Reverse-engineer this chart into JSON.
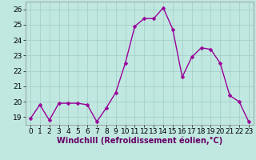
{
  "x": [
    0,
    1,
    2,
    3,
    4,
    5,
    6,
    7,
    8,
    9,
    10,
    11,
    12,
    13,
    14,
    15,
    16,
    17,
    18,
    19,
    20,
    21,
    22,
    23
  ],
  "y": [
    18.9,
    19.8,
    18.8,
    19.9,
    19.9,
    19.9,
    19.8,
    18.7,
    19.6,
    20.6,
    22.5,
    24.9,
    25.4,
    25.4,
    26.1,
    24.7,
    21.6,
    22.9,
    23.5,
    23.4,
    22.5,
    20.4,
    20.0,
    18.7
  ],
  "xlabel": "Windchill (Refroidissement éolien,°C)",
  "xlim": [
    -0.5,
    23.5
  ],
  "ylim": [
    18.5,
    26.5
  ],
  "yticks": [
    19,
    20,
    21,
    22,
    23,
    24,
    25,
    26
  ],
  "xticks": [
    0,
    1,
    2,
    3,
    4,
    5,
    6,
    7,
    8,
    9,
    10,
    11,
    12,
    13,
    14,
    15,
    16,
    17,
    18,
    19,
    20,
    21,
    22,
    23
  ],
  "line_color": "#990099",
  "marker_color": "#990099",
  "bg_color": "#c0e8e0",
  "grid_color": "#a0ccc4",
  "xlabel_fontsize": 7,
  "tick_fontsize": 6.5,
  "line_width": 1.0,
  "marker_size": 2.5
}
